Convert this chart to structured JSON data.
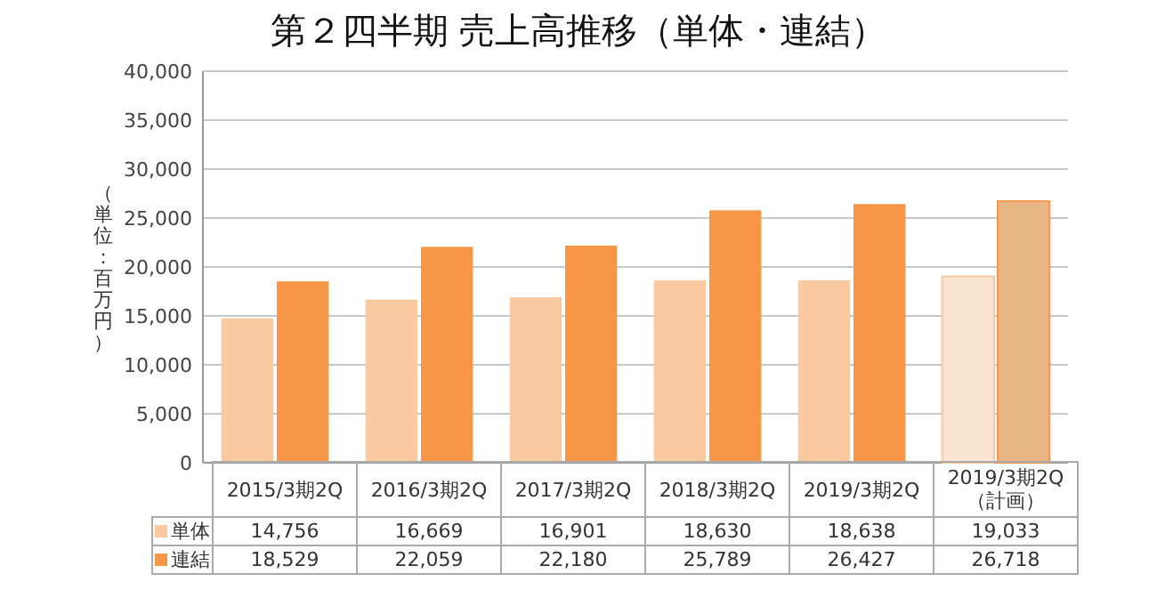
{
  "chart_data": {
    "type": "bar",
    "title": "第２四半期 売上高推移（単体・連結）",
    "ylabel": "（単位：百万円）",
    "categories": [
      "2015/3期2Q",
      "2016/3期2Q",
      "2017/3期2Q",
      "2018/3期2Q",
      "2019/3期2Q",
      "2019/3期2Q（計画）"
    ],
    "series": [
      {
        "name": "単体",
        "color": "#fbc9a0",
        "colors": [
          "#fbc9a0",
          "#fbc9a0",
          "#fbc9a0",
          "#fbc9a0",
          "#fbc9a0",
          "#f8e4d0"
        ],
        "values": [
          14756,
          16669,
          16901,
          18630,
          18638,
          19033
        ],
        "value_labels": [
          "14,756",
          "16,669",
          "16,901",
          "18,630",
          "18,638",
          "19,033"
        ]
      },
      {
        "name": "連結",
        "color": "#f79646",
        "colors": [
          "#f79646",
          "#f79646",
          "#f79646",
          "#f79646",
          "#f79646",
          "#e8b585"
        ],
        "values": [
          18529,
          22059,
          22180,
          25789,
          26427,
          26718
        ],
        "value_labels": [
          "18,529",
          "22,059",
          "22,180",
          "25,789",
          "26,427",
          "26,718"
        ]
      }
    ],
    "ylim": [
      0,
      40000
    ],
    "yticks": [
      {
        "value": 0,
        "label": "0"
      },
      {
        "value": 5000,
        "label": "5,000"
      },
      {
        "value": 10000,
        "label": "10,000"
      },
      {
        "value": 15000,
        "label": "15,000"
      },
      {
        "value": 20000,
        "label": "20,000"
      },
      {
        "value": 25000,
        "label": "25,000"
      },
      {
        "value": 30000,
        "label": "30,000"
      },
      {
        "value": 35000,
        "label": "35,000"
      },
      {
        "value": 40000,
        "label": "40,000"
      }
    ],
    "grid": "y",
    "legend": "bottom"
  }
}
